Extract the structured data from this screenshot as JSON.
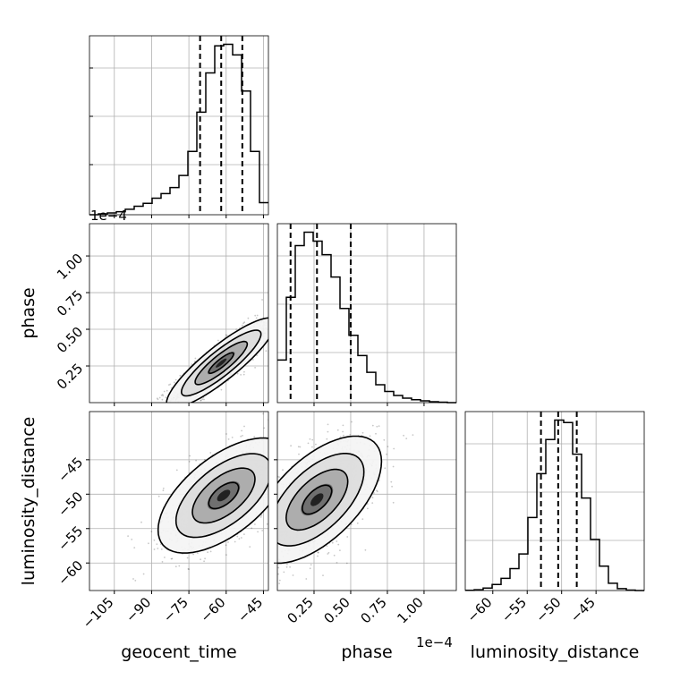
{
  "chart_data": {
    "type": "corner",
    "title": "",
    "parameters": [
      "geocent_time",
      "phase",
      "luminosity_distance"
    ],
    "offset_labels": {
      "geocent_time": "1e−4",
      "phase": "1e−4"
    },
    "axis_ranges": {
      "geocent_time": [
        -115,
        -43
      ],
      "phase": [
        0.0,
        1.22
      ],
      "luminosity_distance": [
        -64,
        -38
      ]
    },
    "ticks": {
      "geocent_time": [
        -105,
        -90,
        -75,
        -60,
        -45
      ],
      "phase": [
        0.25,
        0.5,
        0.75,
        1.0
      ],
      "luminosity_distance": [
        -60,
        -55,
        -50,
        -45
      ]
    },
    "tick_labels": {
      "geocent_time": [
        "−105",
        "−90",
        "−75",
        "−60",
        "−45"
      ],
      "phase": [
        "0.25",
        "0.50",
        "0.75",
        "1.00"
      ],
      "luminosity_distance": [
        "−60",
        "−55",
        "−50",
        "−45"
      ]
    },
    "quantiles": {
      "geocent_time": [
        -70.5,
        -62.0,
        -53.5
      ],
      "phase": [
        0.09,
        0.27,
        0.5
      ],
      "luminosity_distance": [
        -53.0,
        -50.5,
        -47.8
      ]
    },
    "histograms": {
      "geocent_time": {
        "bins": [
          -115,
          -111.4,
          -107.8,
          -104.2,
          -100.6,
          -97,
          -93.4,
          -89.8,
          -86.2,
          -82.6,
          -79,
          -75.4,
          -71.8,
          -68.2,
          -64.6,
          -61,
          -57.4,
          -53.8,
          -50.2,
          -46.6,
          -43
        ],
        "counts": [
          0,
          3,
          6,
          10,
          18,
          28,
          38,
          55,
          70,
          90,
          130,
          210,
          340,
          470,
          560,
          565,
          530,
          410,
          210,
          40
        ]
      },
      "phase": {
        "bins": [
          0.0,
          0.061,
          0.122,
          0.183,
          0.244,
          0.305,
          0.366,
          0.427,
          0.488,
          0.549,
          0.61,
          0.671,
          0.732,
          0.793,
          0.854,
          0.915,
          0.976,
          1.037,
          1.098,
          1.159,
          1.22
        ],
        "counts": [
          190,
          470,
          700,
          760,
          720,
          660,
          560,
          420,
          300,
          210,
          135,
          80,
          50,
          32,
          20,
          13,
          8,
          4,
          2,
          0
        ]
      },
      "luminosity_distance": {
        "bins": [
          -64,
          -62.7,
          -61.4,
          -60.1,
          -58.8,
          -57.5,
          -56.2,
          -54.9,
          -53.6,
          -52.3,
          -51,
          -49.7,
          -48.4,
          -47.1,
          -45.8,
          -44.5,
          -43.2,
          -41.9,
          -40.6,
          -39.3,
          -38
        ],
        "counts": [
          1,
          3,
          10,
          25,
          50,
          90,
          150,
          300,
          480,
          620,
          700,
          690,
          560,
          380,
          210,
          100,
          30,
          8,
          2,
          0
        ]
      }
    },
    "joint": [
      {
        "x": "geocent_time",
        "y": "phase",
        "mean": [
          -62,
          0.27
        ],
        "sd": [
          10,
          0.14
        ],
        "rho": 0.88
      },
      {
        "x": "geocent_time",
        "y": "luminosity_distance",
        "mean": [
          -61,
          -50.2
        ],
        "sd": [
          12,
          3.8
        ],
        "rho": 0.6
      },
      {
        "x": "phase",
        "y": "luminosity_distance",
        "mean": [
          0.27,
          -50.8
        ],
        "sd": [
          0.2,
          4.2
        ],
        "rho": 0.6
      }
    ],
    "grid": true
  }
}
